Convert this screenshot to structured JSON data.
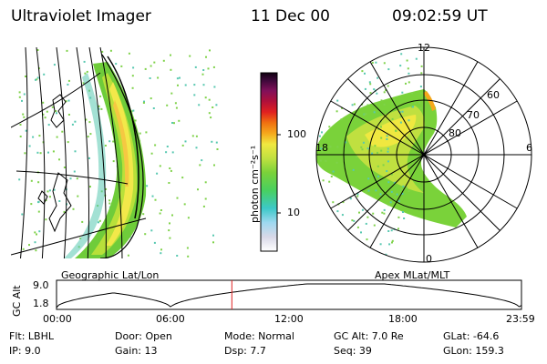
{
  "header": {
    "instrument": "Ultraviolet Imager",
    "date": "11 Dec 00",
    "time": "09:02:59 UT"
  },
  "geo_panel": {
    "caption": "Geographic Lat/Lon"
  },
  "colorbar": {
    "unit_label": "photon cm⁻²s⁻¹",
    "ticks": [
      "100",
      "10"
    ]
  },
  "polar_panel": {
    "caption": "Apex MLat/MLT",
    "mlt_labels": [
      "12",
      "18",
      "6",
      "0"
    ],
    "mlat_labels": [
      "60",
      "70",
      "80"
    ]
  },
  "orbit_plot": {
    "axis_label": "GC Alt",
    "y_ticks": [
      "9.0",
      "1.8"
    ],
    "x_ticks": [
      "00:00",
      "06:00",
      "12:00",
      "18:00",
      "23:59"
    ],
    "marker_time_hours": 9.05,
    "marker_color": "#e02020"
  },
  "params": {
    "filter": "Flt:  LBHL",
    "ip": "IP:  9.0",
    "door": "Door:  Open",
    "gain": "Gain:  13",
    "mode": "Mode:  Normal",
    "dsp": "Dsp:      7.7",
    "gc_alt": "GC Alt:  7.0 Re",
    "seq": "Seq:  39",
    "glat": "GLat:  -64.6",
    "glon": "GLon:  159.3"
  }
}
